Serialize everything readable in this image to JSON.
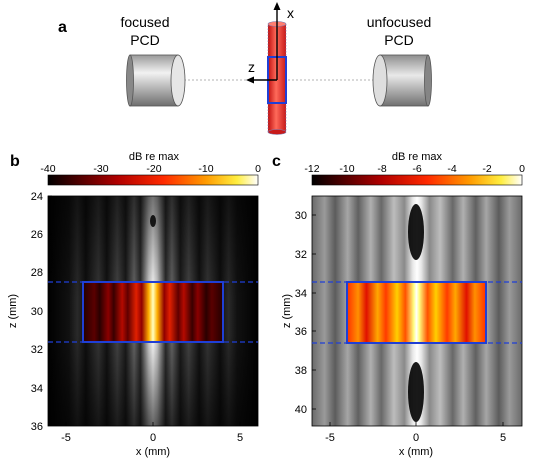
{
  "panel_a": {
    "letter": "a",
    "left_label_1": "focused",
    "left_label_2": "PCD",
    "right_label_1": "unfocused",
    "right_label_2": "PCD",
    "axis_x": "x",
    "axis_z": "z"
  },
  "panel_b": {
    "letter": "b",
    "colorbar_title": "dB re max",
    "colorbar_ticks": [
      "-40",
      "-30",
      "-20",
      "-10",
      "0"
    ],
    "y_ticks": [
      "24",
      "26",
      "28",
      "30",
      "32",
      "34",
      "36"
    ],
    "x_ticks": [
      "-5",
      "0",
      "5"
    ],
    "xlabel": "x (mm)",
    "ylabel": "z (mm)"
  },
  "panel_c": {
    "letter": "c",
    "colorbar_title": "dB re max",
    "colorbar_ticks": [
      "-12",
      "-10",
      "-8",
      "-6",
      "-4",
      "-2",
      "0"
    ],
    "y_ticks": [
      "30",
      "32",
      "34",
      "36",
      "38",
      "40"
    ],
    "x_ticks": [
      "-5",
      "0",
      "5"
    ],
    "xlabel": "x (mm)",
    "ylabel": "z (mm)"
  },
  "colors": {
    "box": "#1f3fd6",
    "tube": "#e8352b"
  }
}
